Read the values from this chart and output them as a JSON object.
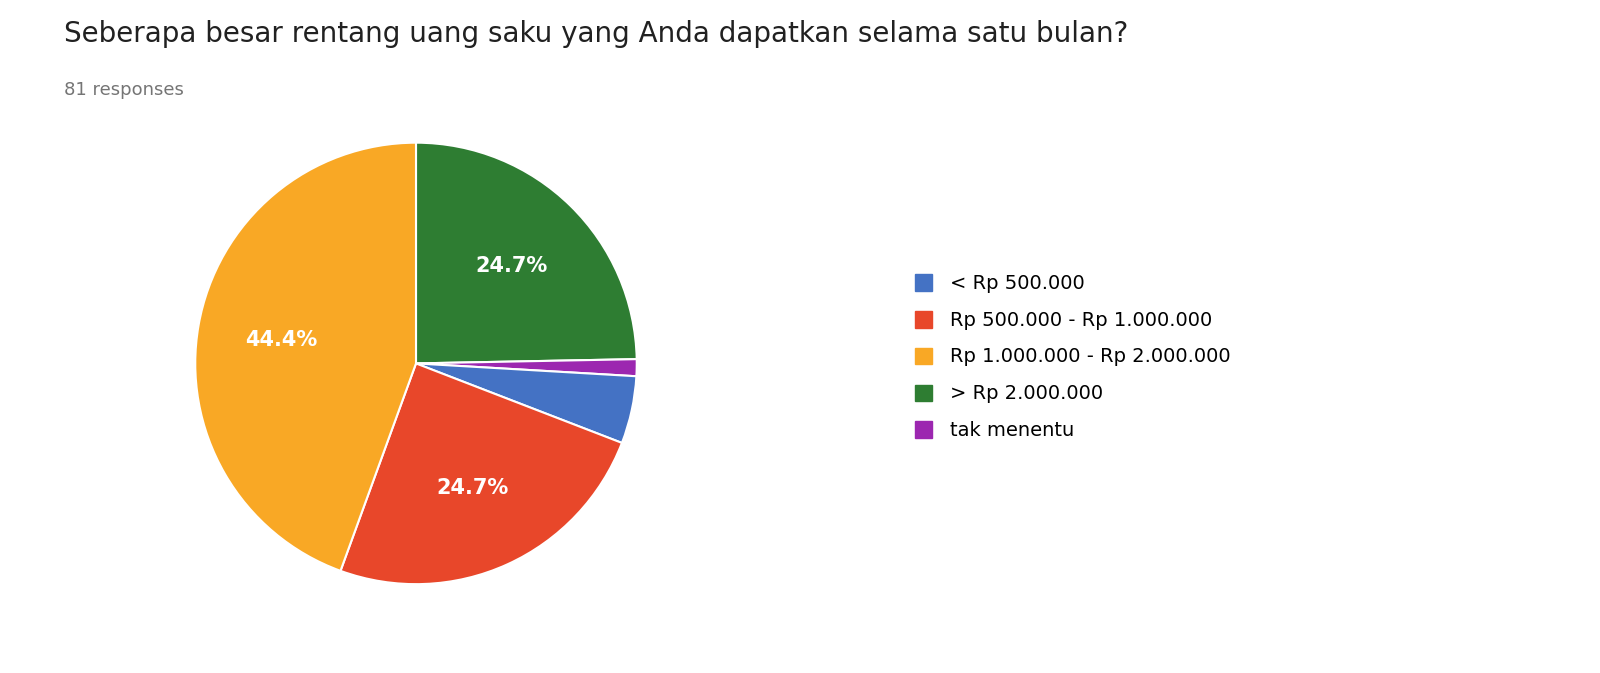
{
  "title": "Seberapa besar rentang uang saku yang Anda dapatkan selama satu bulan?",
  "subtitle": "81 responses",
  "labels": [
    "< Rp 500.000",
    "Rp 500.000 - Rp 1.000.000",
    "Rp 1.000.000 - Rp 2.000.000",
    "> Rp 2.000.000",
    "tak menentu"
  ],
  "legend_order": [
    0,
    1,
    2,
    3,
    4
  ],
  "pie_order_labels": [
    "> Rp 2.000.000",
    "tak menentu",
    "< Rp 500.000",
    "Rp 500.000 - Rp 1.000.000",
    "Rp 1.000.000 - Rp 2.000.000"
  ],
  "pie_values": [
    24.6914,
    1.2346,
    4.9383,
    24.6914,
    44.4444
  ],
  "pie_colors": [
    "#2e7d32",
    "#9c27b0",
    "#4472c4",
    "#e8472a",
    "#f9a825"
  ],
  "pie_pct_labels": [
    "24.7%",
    "",
    "",
    "24.7%",
    "44.4%"
  ],
  "all_colors": [
    "#4472c4",
    "#e8472a",
    "#f9a825",
    "#2e7d32",
    "#9c27b0"
  ],
  "startangle": 90,
  "background_color": "#ffffff",
  "title_fontsize": 20,
  "subtitle_fontsize": 13,
  "legend_fontsize": 14
}
